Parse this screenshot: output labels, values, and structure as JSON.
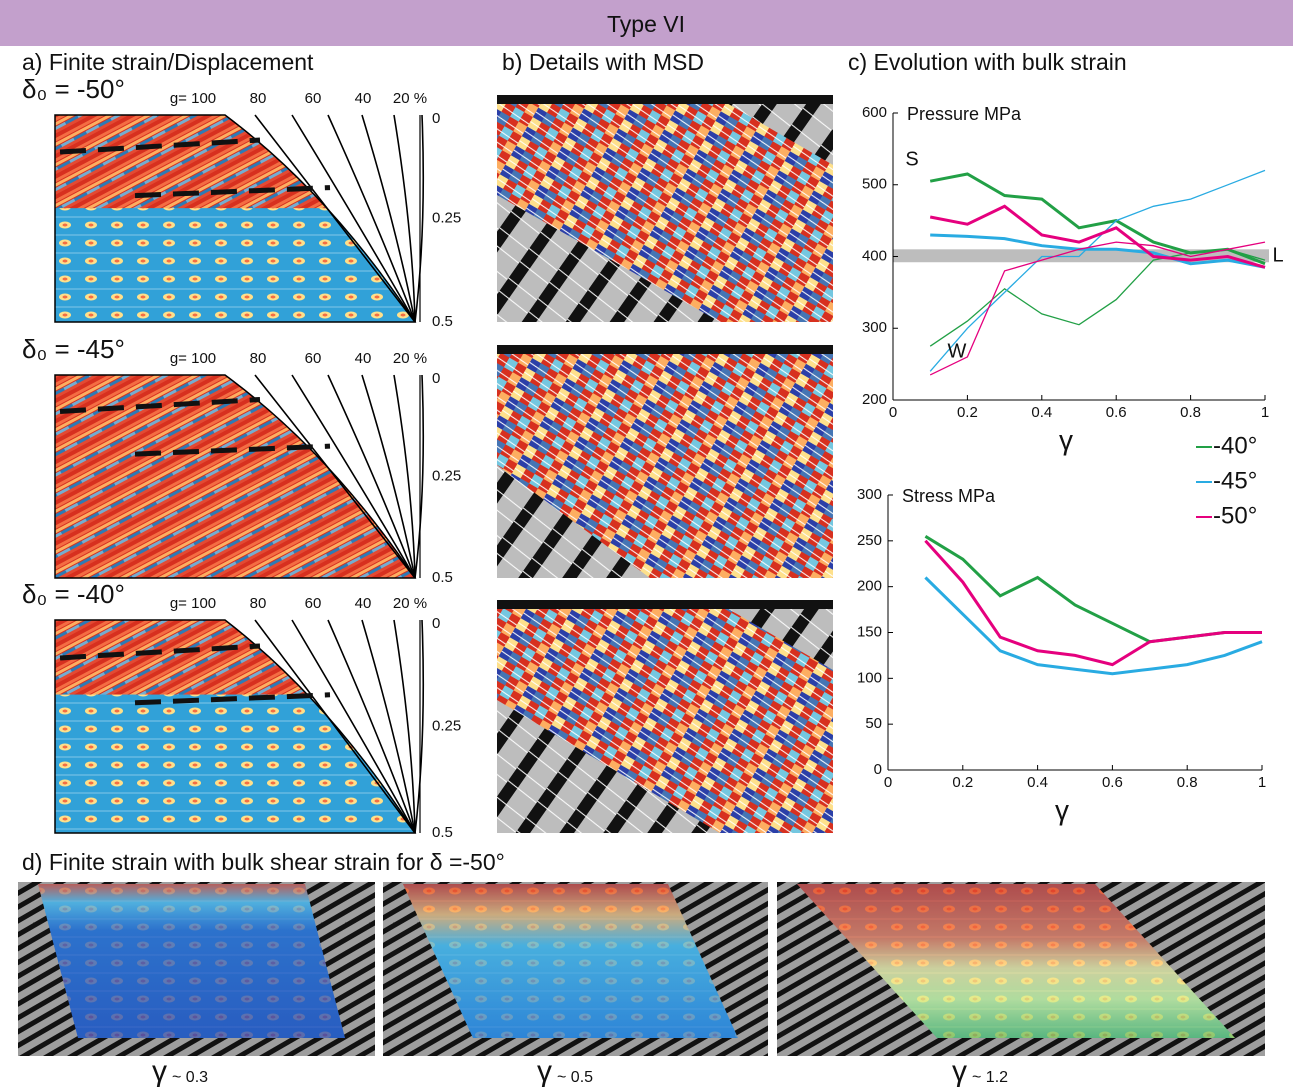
{
  "header": {
    "title": "Type VI"
  },
  "panels": {
    "a": {
      "title": "a) Finite strain/Displacement",
      "maps": [
        {
          "label": "δ₀ = -50°"
        },
        {
          "label": "δ₀ = -45°"
        },
        {
          "label": "δ₀ = -40°"
        }
      ],
      "strain_labels": [
        "g= 100",
        "80",
        "60",
        "40",
        "20 %"
      ],
      "depth_labels": [
        "0",
        "0.25",
        "0.5"
      ]
    },
    "b": {
      "title": "b) Details with MSD"
    },
    "c": {
      "title": "c) Evolution with bulk strain"
    },
    "d": {
      "title": "d)  Finite strain with  bulk shear strain for δ =-50°",
      "images": [
        {
          "symbol": "γ",
          "value": "~ 0.3"
        },
        {
          "symbol": "γ",
          "value": "~ 0.5"
        },
        {
          "symbol": "γ",
          "value": "~ 1.2"
        }
      ]
    }
  },
  "chart_data": [
    {
      "type": "line",
      "title": "Pressure MPa",
      "x_label": "γ",
      "x": [
        0.1,
        0.2,
        0.3,
        0.4,
        0.5,
        0.6,
        0.7,
        0.8,
        0.9,
        1.0
      ],
      "xlim": [
        0,
        1
      ],
      "xticks": [
        0,
        0.2,
        0.4,
        0.6,
        0.8,
        1
      ],
      "ylim": [
        200,
        600
      ],
      "yticks": [
        200,
        300,
        400,
        500,
        600
      ],
      "reference_band": [
        392,
        410
      ],
      "annotations": [
        "S",
        "W",
        "L"
      ],
      "series": [
        {
          "color": "#22a046",
          "values": [
            505,
            515,
            485,
            480,
            440,
            450,
            420,
            405,
            410,
            390
          ],
          "weak_values": [
            275,
            310,
            355,
            320,
            305,
            340,
            395,
            405,
            410,
            395
          ]
        },
        {
          "color": "#29abe2",
          "values": [
            430,
            428,
            425,
            415,
            410,
            410,
            405,
            390,
            395,
            385
          ],
          "weak_values": [
            240,
            300,
            350,
            400,
            400,
            450,
            470,
            480,
            500,
            520
          ]
        },
        {
          "color": "#e5007e",
          "values": [
            455,
            445,
            470,
            430,
            420,
            440,
            400,
            395,
            400,
            385
          ],
          "weak_values": [
            235,
            260,
            380,
            395,
            410,
            420,
            415,
            400,
            410,
            420
          ]
        }
      ]
    },
    {
      "type": "line",
      "title": "Stress MPa",
      "x_label": "γ",
      "x": [
        0.1,
        0.2,
        0.3,
        0.4,
        0.5,
        0.6,
        0.7,
        0.8,
        0.9,
        1.0
      ],
      "xlim": [
        0,
        1
      ],
      "xticks": [
        0,
        0.2,
        0.4,
        0.6,
        0.8,
        1
      ],
      "ylim": [
        0,
        300
      ],
      "yticks": [
        0,
        50,
        100,
        150,
        200,
        250,
        300
      ],
      "series": [
        {
          "name": "-40°",
          "color": "#22a046",
          "values": [
            255,
            230,
            190,
            210,
            180,
            160,
            140,
            145,
            150,
            150
          ]
        },
        {
          "name": "-45°",
          "color": "#29abe2",
          "values": [
            210,
            170,
            130,
            115,
            110,
            105,
            110,
            115,
            125,
            140
          ]
        },
        {
          "name": "-50°",
          "color": "#e5007e",
          "values": [
            250,
            205,
            145,
            130,
            125,
            115,
            140,
            145,
            150,
            150
          ]
        }
      ]
    }
  ]
}
